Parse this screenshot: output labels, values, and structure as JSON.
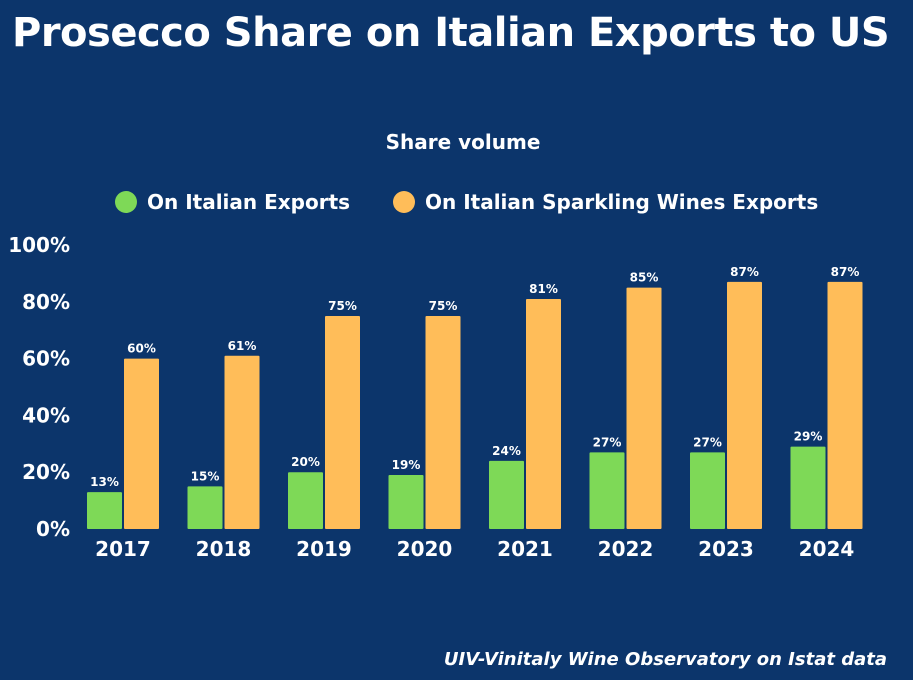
{
  "title": "Prosecco Share on Italian Exports to US",
  "source": "UIV-Vinitaly Wine Observatory on Istat data",
  "chart_data": {
    "type": "bar",
    "title": "Prosecco Share on Italian Exports to US",
    "subtitle": "Share volume",
    "categories": [
      "2017",
      "2018",
      "2019",
      "2020",
      "2021",
      "2022",
      "2023",
      "2024"
    ],
    "series": [
      {
        "name": "On Italian Exports",
        "color": "#7ed957",
        "values": [
          13,
          15,
          20,
          19,
          24,
          27,
          27,
          29
        ]
      },
      {
        "name": "On Italian Sparkling Wines Exports",
        "color": "#ffbd59",
        "values": [
          60,
          61,
          75,
          75,
          81,
          85,
          87,
          87
        ]
      }
    ],
    "yticks": [
      "0%",
      "20%",
      "40%",
      "60%",
      "80%",
      "100%"
    ],
    "ylim": [
      0,
      100
    ],
    "value_suffix": "%",
    "legend_position": "top",
    "grid": false,
    "data_labels": true
  }
}
